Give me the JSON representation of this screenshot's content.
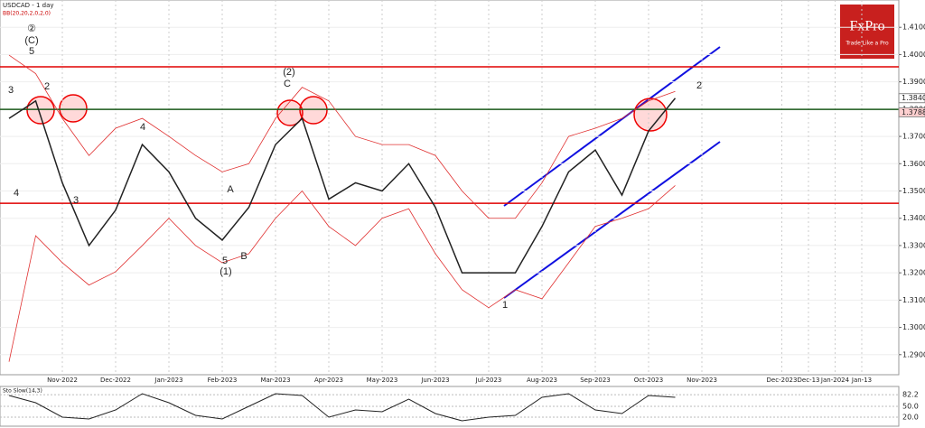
{
  "chart_data": {
    "type": "line",
    "title": "USDCAD - 1 day",
    "subtitle": "BB(20,20,2,0,2,0)",
    "logo": {
      "brand": "FxPro",
      "tagline": "Trade Like a Pro"
    },
    "categories": [
      null,
      null,
      "Nov-2022",
      null,
      "Dec-2022",
      null,
      "Jan-2023",
      null,
      "Feb-2023",
      null,
      "Mar-2023",
      null,
      "Apr-2023",
      null,
      "May-2023",
      null,
      "Jun-2023",
      null,
      "Jul-2023",
      null,
      "Aug-2023",
      null,
      "Sep-2023",
      null,
      "Oct-2023",
      null,
      "Nov-2023",
      null,
      null,
      "Dec-2023",
      "Dec-13",
      "Jan-2024",
      "Jan-13",
      null
    ],
    "series": [
      {
        "name": "USDCAD",
        "color": "#222222",
        "values": [
          1.3766,
          1.383,
          1.353,
          1.33,
          1.343,
          1.367,
          1.357,
          1.34,
          1.332,
          1.344,
          1.367,
          1.3766,
          1.347,
          1.353,
          1.35,
          1.36,
          1.344,
          1.32,
          1.32,
          1.32,
          1.337,
          1.357,
          1.365,
          1.3485,
          1.372,
          1.384,
          null,
          null,
          null,
          null,
          null,
          null,
          null,
          null
        ]
      },
      {
        "name": "BB upper",
        "color": "#e03030",
        "values": [
          1.3998,
          1.393,
          1.3766,
          1.363,
          1.373,
          1.3766,
          1.37,
          1.363,
          1.357,
          1.36,
          1.3766,
          1.388,
          1.383,
          1.37,
          1.367,
          1.367,
          1.363,
          1.35,
          1.34,
          1.34,
          1.353,
          1.37,
          1.373,
          1.3766,
          1.383,
          1.3865,
          null,
          null,
          null,
          null,
          null,
          null,
          null,
          null
        ]
      },
      {
        "name": "BB lower",
        "color": "#e03030",
        "values": [
          1.2874,
          1.3336,
          1.3237,
          1.3155,
          1.3204,
          1.33,
          1.34,
          1.33,
          1.3237,
          1.327,
          1.34,
          1.35,
          1.337,
          1.33,
          1.34,
          1.3435,
          1.327,
          1.3138,
          1.3072,
          1.3138,
          1.3105,
          1.3237,
          1.337,
          1.34,
          1.3435,
          1.352,
          null,
          null,
          null,
          null,
          null,
          null,
          null,
          null
        ]
      }
    ],
    "ylim": [
      1.28,
      1.42
    ],
    "yticks": [
      {
        "value": 1.29,
        "label": "1.29000"
      },
      {
        "value": 1.3,
        "label": "1.30000"
      },
      {
        "value": 1.31,
        "label": "1.31000"
      },
      {
        "value": 1.32,
        "label": "1.32000"
      },
      {
        "value": 1.33,
        "label": "1.33000"
      },
      {
        "value": 1.34,
        "label": "1.34000"
      },
      {
        "value": 1.35,
        "label": "1.35000"
      },
      {
        "value": 1.36,
        "label": "1.36000"
      },
      {
        "value": 1.37,
        "label": "1.37000"
      },
      {
        "value": 1.38,
        "label": "1.38000"
      },
      {
        "value": 1.39,
        "label": "1.39000"
      },
      {
        "value": 1.4,
        "label": "1.40000"
      },
      {
        "value": 1.41,
        "label": "1.41000"
      }
    ],
    "price_labels": [
      {
        "value": 1.38402,
        "color": "#ffffff"
      },
      {
        "value": 1.37884,
        "color": "#ffd0d0"
      }
    ],
    "levels": [
      {
        "value": 1.3955,
        "color": "#e00000"
      },
      {
        "value": 1.3799,
        "color": "#1a5a1a"
      },
      {
        "value": 1.3455,
        "color": "#e00000"
      }
    ],
    "annotations": [
      "②",
      "(C)",
      "5",
      "3",
      "2",
      "4",
      "3",
      "4",
      "A",
      "5",
      "(1)",
      "B",
      "(2)",
      "C",
      "1",
      "2"
    ],
    "oscillator": {
      "name": "Sto Slow(14,3)",
      "color": "#222222",
      "values": [
        80,
        60,
        20,
        15,
        40,
        85,
        60,
        25,
        15,
        50,
        85,
        80,
        20,
        40,
        35,
        70,
        30,
        10,
        20,
        25,
        75,
        85,
        40,
        30,
        80,
        75,
        null,
        null,
        null,
        null,
        null,
        null,
        null,
        null
      ],
      "ylim": [
        0,
        100
      ],
      "yticks": [
        {
          "value": 82.2,
          "label": "82.2"
        },
        {
          "value": 50,
          "label": "50.0"
        },
        {
          "value": 20,
          "label": "20.0"
        }
      ]
    }
  }
}
